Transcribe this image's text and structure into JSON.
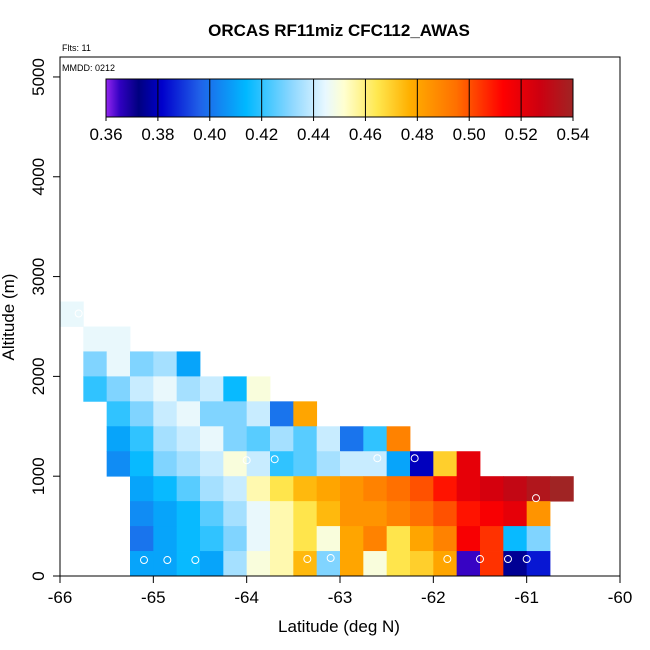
{
  "chart_data": {
    "type": "heatmap",
    "title": "ORCAS RF11miz CFC112_AWAS",
    "xlabel": "Latitude (deg N)",
    "ylabel": "Altitude (m)",
    "note_flts": "Flts: 11",
    "note_mmdd": "MMDD: 0212",
    "xlim": [
      -66,
      -60
    ],
    "ylim": [
      0,
      5200
    ],
    "xticks": [
      -66,
      -65,
      -64,
      -63,
      -62,
      -61,
      -60
    ],
    "yticks": [
      0,
      1000,
      2000,
      3000,
      4000,
      5000
    ],
    "grid": false,
    "colorbar": {
      "placement": "top-inside",
      "min": 0.36,
      "max": 0.54,
      "ticks": [
        "0.36",
        "0.38",
        "0.40",
        "0.42",
        "0.44",
        "0.46",
        "0.48",
        "0.50",
        "0.52",
        "0.54"
      ]
    },
    "cell_size": {
      "lat": 0.25,
      "alt": 250
    },
    "cells": [
      [
        -66.0,
        2500,
        0.445
      ],
      [
        -65.75,
        2250,
        0.445
      ],
      [
        -65.5,
        2250,
        0.445
      ],
      [
        -65.75,
        2000,
        0.43
      ],
      [
        -65.5,
        2000,
        0.445
      ],
      [
        -65.25,
        2000,
        0.43
      ],
      [
        -65.0,
        2000,
        0.435
      ],
      [
        -64.75,
        2000,
        0.41
      ],
      [
        -65.75,
        1750,
        0.42
      ],
      [
        -65.5,
        1750,
        0.43
      ],
      [
        -65.25,
        1750,
        0.44
      ],
      [
        -65.0,
        1750,
        0.445
      ],
      [
        -64.75,
        1750,
        0.435
      ],
      [
        -64.5,
        1750,
        0.44
      ],
      [
        -64.25,
        1750,
        0.415
      ],
      [
        -64.0,
        1750,
        0.45
      ],
      [
        -65.5,
        1500,
        0.42
      ],
      [
        -65.25,
        1500,
        0.43
      ],
      [
        -65.0,
        1500,
        0.44
      ],
      [
        -64.75,
        1500,
        0.445
      ],
      [
        -64.5,
        1500,
        0.43
      ],
      [
        -64.25,
        1500,
        0.43
      ],
      [
        -64.0,
        1500,
        0.44
      ],
      [
        -63.75,
        1500,
        0.4
      ],
      [
        -63.5,
        1500,
        0.48
      ],
      [
        -65.5,
        1250,
        0.41
      ],
      [
        -65.25,
        1250,
        0.42
      ],
      [
        -65.0,
        1250,
        0.435
      ],
      [
        -64.75,
        1250,
        0.44
      ],
      [
        -64.5,
        1250,
        0.445
      ],
      [
        -64.25,
        1250,
        0.43
      ],
      [
        -64.0,
        1250,
        0.425
      ],
      [
        -63.75,
        1250,
        0.435
      ],
      [
        -63.5,
        1250,
        0.425
      ],
      [
        -63.25,
        1250,
        0.44
      ],
      [
        -63.0,
        1250,
        0.4
      ],
      [
        -62.75,
        1250,
        0.42
      ],
      [
        -62.5,
        1250,
        0.49
      ],
      [
        -65.5,
        1000,
        0.405
      ],
      [
        -65.25,
        1000,
        0.415
      ],
      [
        -65.0,
        1000,
        0.43
      ],
      [
        -64.75,
        1000,
        0.435
      ],
      [
        -64.5,
        1000,
        0.44
      ],
      [
        -64.25,
        1000,
        0.45
      ],
      [
        -64.0,
        1000,
        0.44
      ],
      [
        -63.75,
        1000,
        0.42
      ],
      [
        -63.5,
        1000,
        0.425
      ],
      [
        -63.25,
        1000,
        0.435
      ],
      [
        -63.0,
        1000,
        0.44
      ],
      [
        -62.75,
        1000,
        0.44
      ],
      [
        -62.5,
        1000,
        0.41
      ],
      [
        -62.25,
        1000,
        0.38
      ],
      [
        -62.0,
        1000,
        0.47
      ],
      [
        -61.75,
        1000,
        0.52
      ],
      [
        -65.25,
        750,
        0.41
      ],
      [
        -65.0,
        750,
        0.415
      ],
      [
        -64.75,
        750,
        0.425
      ],
      [
        -64.5,
        750,
        0.435
      ],
      [
        -64.25,
        750,
        0.44
      ],
      [
        -64.0,
        750,
        0.455
      ],
      [
        -63.75,
        750,
        0.465
      ],
      [
        -63.5,
        750,
        0.475
      ],
      [
        -63.25,
        750,
        0.48
      ],
      [
        -63.0,
        750,
        0.485
      ],
      [
        -62.75,
        750,
        0.49
      ],
      [
        -62.5,
        750,
        0.495
      ],
      [
        -62.25,
        750,
        0.5
      ],
      [
        -62.0,
        750,
        0.51
      ],
      [
        -61.75,
        750,
        0.52
      ],
      [
        -61.5,
        750,
        0.525
      ],
      [
        -61.25,
        750,
        0.53
      ],
      [
        -61.0,
        750,
        0.535
      ],
      [
        -60.75,
        750,
        0.54
      ],
      [
        -65.25,
        500,
        0.405
      ],
      [
        -65.0,
        500,
        0.41
      ],
      [
        -64.75,
        500,
        0.415
      ],
      [
        -64.5,
        500,
        0.425
      ],
      [
        -64.25,
        500,
        0.435
      ],
      [
        -64.0,
        500,
        0.445
      ],
      [
        -63.75,
        500,
        0.455
      ],
      [
        -63.5,
        500,
        0.465
      ],
      [
        -63.25,
        500,
        0.475
      ],
      [
        -63.0,
        500,
        0.485
      ],
      [
        -62.75,
        500,
        0.485
      ],
      [
        -62.5,
        500,
        0.49
      ],
      [
        -62.25,
        500,
        0.495
      ],
      [
        -62.0,
        500,
        0.5
      ],
      [
        -61.75,
        500,
        0.51
      ],
      [
        -61.5,
        500,
        0.515
      ],
      [
        -61.25,
        500,
        0.52
      ],
      [
        -61.0,
        500,
        0.485
      ],
      [
        -65.25,
        250,
        0.4
      ],
      [
        -65.0,
        250,
        0.41
      ],
      [
        -64.75,
        250,
        0.415
      ],
      [
        -64.5,
        250,
        0.42
      ],
      [
        -64.25,
        250,
        0.43
      ],
      [
        -64.0,
        250,
        0.445
      ],
      [
        -63.75,
        250,
        0.455
      ],
      [
        -63.5,
        250,
        0.465
      ],
      [
        -63.25,
        250,
        0.45
      ],
      [
        -63.0,
        250,
        0.48
      ],
      [
        -62.75,
        250,
        0.49
      ],
      [
        -62.5,
        250,
        0.465
      ],
      [
        -62.25,
        250,
        0.48
      ],
      [
        -62.0,
        250,
        0.49
      ],
      [
        -61.75,
        250,
        0.515
      ],
      [
        -61.5,
        250,
        0.505
      ],
      [
        -61.25,
        250,
        0.415
      ],
      [
        -61.0,
        250,
        0.43
      ],
      [
        -65.25,
        0,
        0.41
      ],
      [
        -65.0,
        0,
        0.41
      ],
      [
        -64.75,
        0,
        0.415
      ],
      [
        -64.5,
        0,
        0.41
      ],
      [
        -64.25,
        0,
        0.435
      ],
      [
        -64.0,
        0,
        0.45
      ],
      [
        -63.75,
        0,
        0.455
      ],
      [
        -63.5,
        0,
        0.475
      ],
      [
        -63.25,
        0,
        0.43
      ],
      [
        -63.0,
        0,
        0.48
      ],
      [
        -62.75,
        0,
        0.45
      ],
      [
        -62.5,
        0,
        0.465
      ],
      [
        -62.25,
        0,
        0.47
      ],
      [
        -62.0,
        0,
        0.48
      ],
      [
        -61.75,
        0,
        0.365
      ],
      [
        -61.5,
        0,
        0.505
      ],
      [
        -61.25,
        0,
        0.375
      ],
      [
        -61.0,
        0,
        0.385
      ]
    ],
    "samples": [
      [
        -65.8,
        2630
      ],
      [
        -65.1,
        160
      ],
      [
        -64.85,
        160
      ],
      [
        -64.55,
        160
      ],
      [
        -64.0,
        1160
      ],
      [
        -63.7,
        1170
      ],
      [
        -63.35,
        170
      ],
      [
        -63.1,
        180
      ],
      [
        -62.6,
        1180
      ],
      [
        -62.2,
        1180
      ],
      [
        -61.85,
        170
      ],
      [
        -61.5,
        170
      ],
      [
        -61.2,
        170
      ],
      [
        -61.0,
        170
      ],
      [
        -60.9,
        780
      ]
    ]
  }
}
